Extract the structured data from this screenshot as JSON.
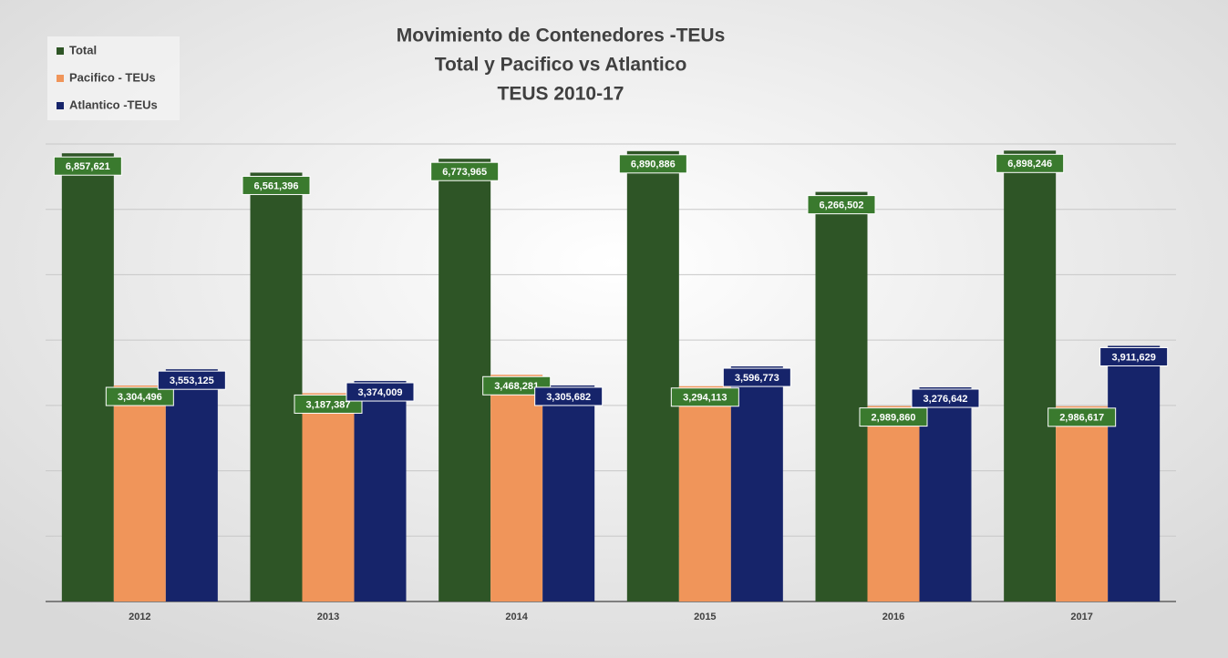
{
  "chart_data": {
    "type": "bar",
    "title": [
      "Movimiento de Contenedores -TEUs",
      "Total y Pacifico vs Atlantico",
      "TEUS 2010-17"
    ],
    "categories": [
      "2012",
      "2013",
      "2014",
      "2015",
      "2016",
      "2017"
    ],
    "series": [
      {
        "name": "Total",
        "color": "#2e5526",
        "label_color": "#3a7a2e",
        "values": [
          6857621,
          6561396,
          6773965,
          6890886,
          6266502,
          6898246
        ],
        "value_labels": [
          "6,857,621",
          "6,561,396",
          "6,773,965",
          "6,890,886",
          "6,266,502",
          "6,898,246"
        ]
      },
      {
        "name": "Pacifico - TEUs",
        "color": "#f0955a",
        "label_color": "#3a7a2e",
        "values": [
          3304496,
          3187387,
          3468281,
          3294113,
          2989860,
          2986617
        ],
        "value_labels": [
          "3,304,496",
          "3,187,387",
          "3,468,281",
          "3,294,113",
          "2,989,860",
          "2,986,617"
        ]
      },
      {
        "name": "Atlantico -TEUs",
        "color": "#16246a",
        "label_color": "#16246a",
        "values": [
          3553125,
          3374009,
          3305682,
          3596773,
          3276642,
          3911629
        ],
        "value_labels": [
          "3,553,125",
          "3,374,009",
          "3,305,682",
          "3,596,773",
          "3,276,642",
          "3,911,629"
        ]
      }
    ],
    "ylim": [
      0,
      7000000
    ],
    "yticks": [
      0,
      1000000,
      2000000,
      3000000,
      4000000,
      5000000,
      6000000,
      7000000
    ],
    "grid": true,
    "legend": "top-left"
  }
}
